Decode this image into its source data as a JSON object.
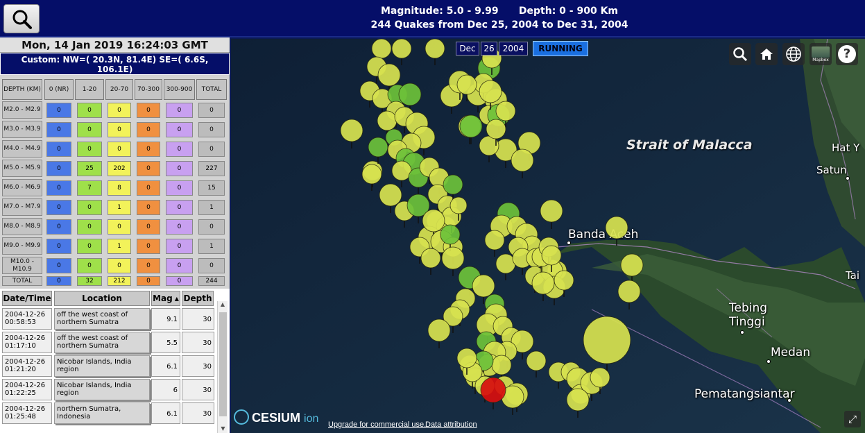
{
  "header": {
    "line1": "Magnitude: 5.0 - 9.99      Depth: 0 - 900 Km",
    "line2": "244 Quakes from Dec 25, 2004 to Dec 31, 2004"
  },
  "left_panel": {
    "date": "Mon, 14 Jan 2019 16:24:03 GMT",
    "custom_line1": "Custom: NW=( 20.3N, 81.4E)  SE=( 6.6S,",
    "custom_line2": "106.1E)"
  },
  "depth_table": {
    "corner_label": "DEPTH (KM)",
    "columns": [
      "0 (NR)",
      "1-20",
      "20-70",
      "70-300",
      "300-900",
      "TOTAL"
    ],
    "column_colors": [
      "#4a78e6",
      "#9fe04a",
      "#f2f25a",
      "#f09040",
      "#c8a0f0",
      "#bcbcbc"
    ],
    "rows": [
      {
        "label": "M2.0 - M2.9",
        "values": [
          "0",
          "0",
          "0",
          "0",
          "0",
          "0"
        ]
      },
      {
        "label": "M3.0 - M3.9",
        "values": [
          "0",
          "0",
          "0",
          "0",
          "0",
          "0"
        ]
      },
      {
        "label": "M4.0 - M4.9",
        "values": [
          "0",
          "0",
          "0",
          "0",
          "0",
          "0"
        ]
      },
      {
        "label": "M5.0 - M5.9",
        "values": [
          "0",
          "25",
          "202",
          "0",
          "0",
          "227"
        ]
      },
      {
        "label": "M6.0 - M6.9",
        "values": [
          "0",
          "7",
          "8",
          "0",
          "0",
          "15"
        ]
      },
      {
        "label": "M7.0 - M7.9",
        "values": [
          "0",
          "0",
          "1",
          "0",
          "0",
          "1"
        ]
      },
      {
        "label": "M8.0 - M8.9",
        "values": [
          "0",
          "0",
          "0",
          "0",
          "0",
          "0"
        ]
      },
      {
        "label": "M9.0 - M9.9",
        "values": [
          "0",
          "0",
          "1",
          "0",
          "0",
          "1"
        ]
      },
      {
        "label": "M10.0 - M10.9",
        "values": [
          "0",
          "0",
          "0",
          "0",
          "0",
          "0"
        ]
      }
    ],
    "totals_label": "TOTAL",
    "totals": [
      "0",
      "32",
      "212",
      "0",
      "0",
      "244"
    ]
  },
  "quake_list": {
    "headers": {
      "datetime": "Date/Time",
      "location": "Location",
      "mag": "Mag",
      "mag_sort_icon": "sort-up-icon",
      "depth": "Depth"
    },
    "rows": [
      {
        "date": "2004-12-26",
        "time": "00:58:53",
        "location": "off the west coast of northern Sumatra",
        "mag": "9.1",
        "depth": "30"
      },
      {
        "date": "2004-12-26",
        "time": "01:17:10",
        "location": "off the west coast of northern Sumatra",
        "mag": "5.5",
        "depth": "30"
      },
      {
        "date": "2004-12-26",
        "time": "01:21:20",
        "location": "Nicobar Islands, India region",
        "mag": "6.1",
        "depth": "30"
      },
      {
        "date": "2004-12-26",
        "time": "01:22:25",
        "location": "Nicobar Islands, India region",
        "mag": "6",
        "depth": "30"
      },
      {
        "date": "2004-12-26",
        "time": "01:25:48",
        "location": "northern Sumatra, Indonesia",
        "mag": "6.1",
        "depth": "30"
      }
    ]
  },
  "map": {
    "date_month": "Dec",
    "date_day": "26",
    "date_year": "2004",
    "status": "RUNNING",
    "toolbar_icons": [
      "search-icon",
      "home-icon",
      "globe-icon",
      "imagery-picker-icon",
      "help-icon"
    ],
    "imagery_label": "Mapbox",
    "help_glyph": "?",
    "labels": {
      "strait": "Strait of Malacca",
      "banda_aceh": "Banda Aceh",
      "tebing_line1": "Tebing",
      "tebing_line2": "Tinggi",
      "medan": "Medan",
      "pematang": "Pematangsiantar",
      "hat_y": "Hat Y",
      "satun": "Satun",
      "tai": "Tai"
    },
    "attribution": {
      "logo": "CESIUM",
      "logo_suffix": "ion",
      "upgrade": "Upgrade for commercial use.",
      "data": "Data attribution"
    },
    "colors": {
      "green": "#6dc23a",
      "yellow": "#d8e350",
      "red": "#d80e0e"
    }
  }
}
